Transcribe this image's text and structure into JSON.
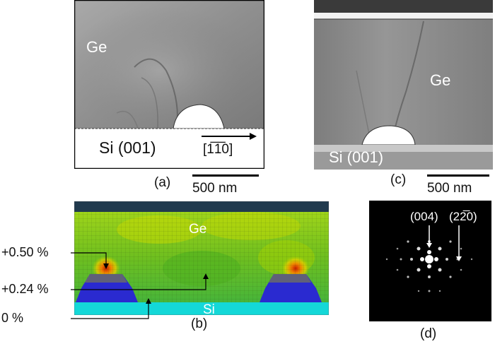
{
  "panel_a": {
    "tag": "(a)",
    "material_top": "Ge",
    "substrate": "Si (001)",
    "direction": "[1̅1̅0]",
    "scale_bar": "500 nm"
  },
  "panel_b": {
    "tag": "(b)",
    "material_top": "Ge",
    "substrate": "Si",
    "strain_labels": [
      "+0.50 %",
      "+0.24 %",
      "0 %"
    ]
  },
  "panel_c": {
    "tag": "(c)",
    "material": "Ge",
    "substrate": "Si (001)",
    "scale_bar": "500 nm"
  },
  "panel_d": {
    "tag": "(d)",
    "spot_1": "(004)",
    "spot_2": "(22̅0)"
  }
}
